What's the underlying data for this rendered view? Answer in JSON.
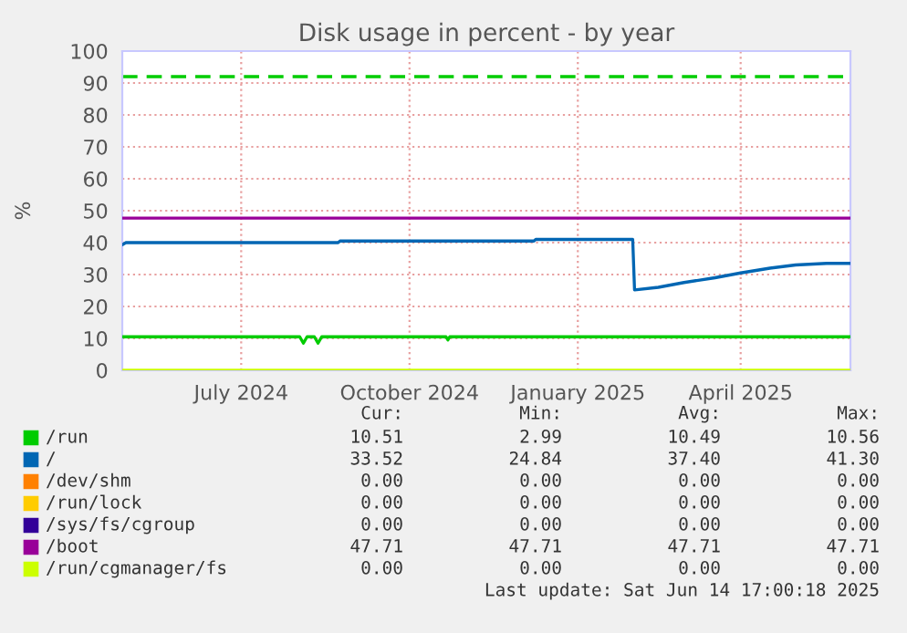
{
  "chart_data": {
    "type": "line",
    "title": "Disk usage in percent - by year",
    "ylabel": "%",
    "xlim": [
      "2024-05-12",
      "2025-06-14"
    ],
    "ylim": [
      0,
      100
    ],
    "xticks": [
      {
        "value": "2024-07-16",
        "label": "July 2024"
      },
      {
        "value": "2024-10-16",
        "label": "October 2024"
      },
      {
        "value": "2025-01-16",
        "label": "January 2025"
      },
      {
        "value": "2025-04-15",
        "label": "April 2025"
      }
    ],
    "yticks": [
      0,
      10,
      20,
      30,
      40,
      50,
      60,
      70,
      80,
      90,
      100
    ],
    "grid": true,
    "legend": "bottom",
    "series": [
      {
        "name": "/run",
        "color": "#00cc00",
        "x": [
          "2024-05-12",
          "2024-08-17",
          "2024-08-19",
          "2024-08-21",
          "2024-08-25",
          "2024-08-27",
          "2024-08-29",
          "2024-11-05",
          "2024-11-06",
          "2024-11-07",
          "2025-06-14"
        ],
        "values": [
          10.5,
          10.5,
          8.5,
          10.5,
          10.5,
          8.5,
          10.5,
          10.5,
          9.5,
          10.5,
          10.5
        ]
      },
      {
        "name": "/",
        "color": "#0066b3",
        "x": [
          "2024-05-12",
          "2024-05-14",
          "2024-09-07",
          "2024-09-08",
          "2024-12-23",
          "2024-12-24",
          "2025-02-15",
          "2025-02-16",
          "2025-03-01",
          "2025-03-15",
          "2025-04-01",
          "2025-04-15",
          "2025-05-01",
          "2025-05-15",
          "2025-06-01",
          "2025-06-14"
        ],
        "values": [
          39.3,
          40,
          40,
          40.5,
          40.5,
          41,
          41,
          25.2,
          26,
          27.5,
          29,
          30.5,
          32,
          33,
          33.5,
          33.5
        ]
      },
      {
        "name": "/dev/shm",
        "color": "#ff8000"
      },
      {
        "name": "/run/lock",
        "color": "#ffcc00"
      },
      {
        "name": "/sys/fs/cgroup",
        "color": "#330099"
      },
      {
        "name": "/boot",
        "color": "#990099",
        "x": [
          "2024-05-12",
          "2025-06-14"
        ],
        "values": [
          47.7,
          47.7
        ]
      },
      {
        "name": "/run/cgmanager/fs",
        "color": "#ccff00",
        "x": [
          "2024-05-12",
          "2025-06-14"
        ],
        "values": [
          0,
          0
        ]
      }
    ],
    "ref_lines": [
      {
        "axis": "y",
        "value": 92,
        "color": "#00cc00",
        "line_style": "dashed"
      }
    ],
    "annotations": [
      "Cur:",
      "Min:",
      "Avg:",
      "Max:",
      "10.51",
      "2.99",
      "10.49",
      "10.56",
      "33.52",
      "24.84",
      "37.40",
      "41.30",
      "0.00",
      "0.00",
      "0.00",
      "0.00",
      "0.00",
      "0.00",
      "0.00",
      "0.00",
      "0.00",
      "0.00",
      "0.00",
      "0.00",
      "47.71",
      "47.71",
      "47.71",
      "47.71",
      "0.00",
      "0.00",
      "0.00",
      "0.00",
      "Last update: Sat Jun 14 17:00:18 2025"
    ]
  }
}
